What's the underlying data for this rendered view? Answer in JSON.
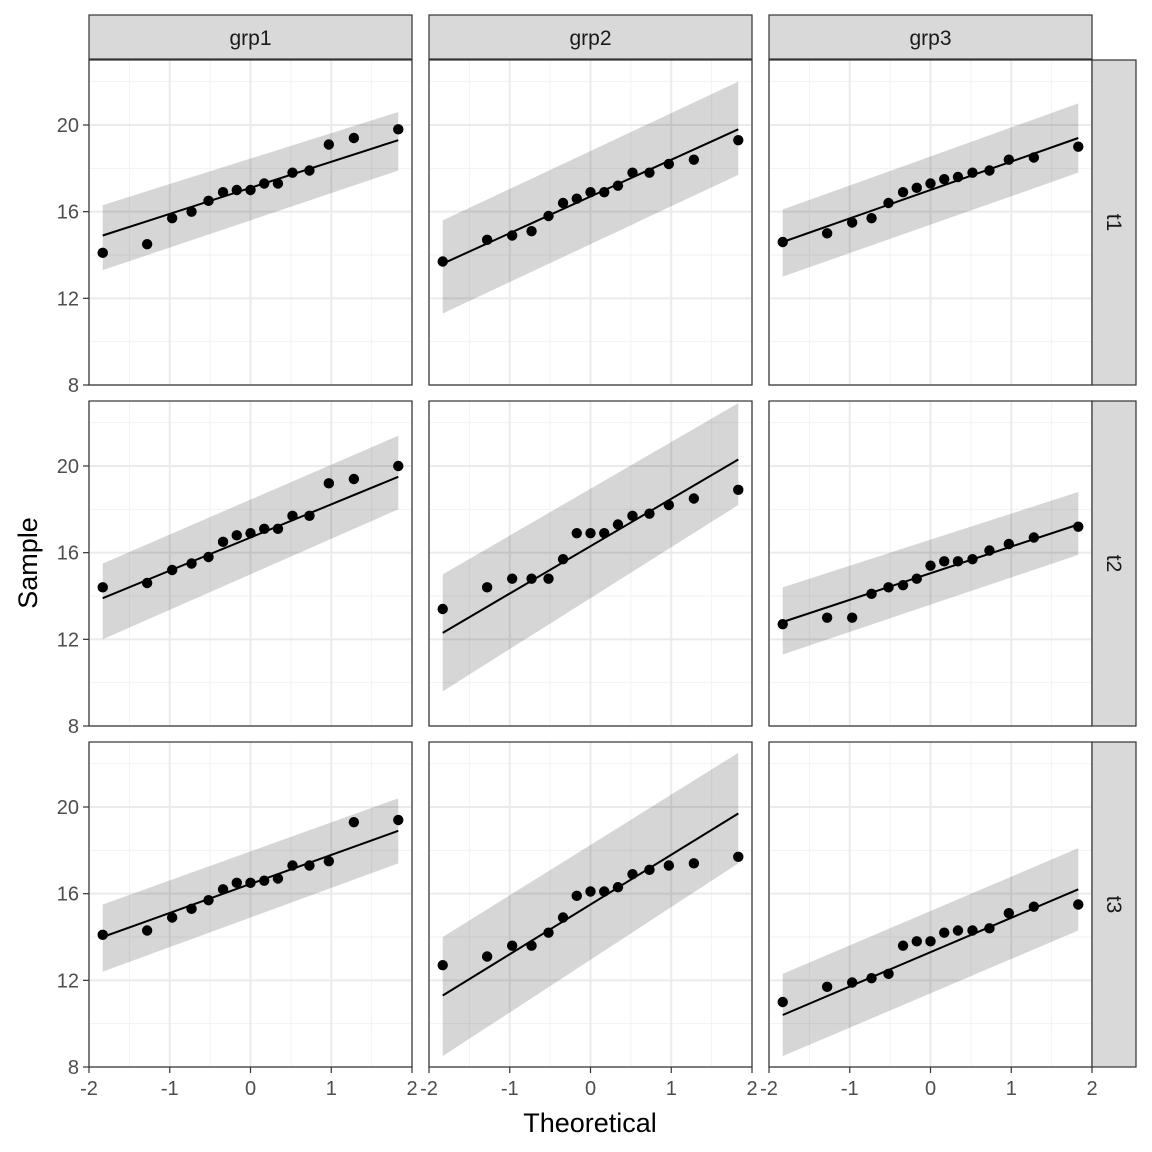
{
  "chart_data": {
    "type": "scatter",
    "title": "",
    "xlabel": "Theoretical",
    "ylabel": "Sample",
    "xlim": [
      -2,
      2
    ],
    "ylim": [
      8,
      23
    ],
    "x_ticks": [
      "-2",
      "-1",
      "0",
      "1",
      "2"
    ],
    "y_ticks": [
      "8",
      "12",
      "16",
      "20"
    ],
    "grid": true,
    "col_facets": [
      "grp1",
      "grp2",
      "grp3"
    ],
    "row_facets": [
      "t1",
      "t2",
      "t3"
    ],
    "theoretical_quantiles": [
      -1.83,
      -1.28,
      -0.97,
      -0.73,
      -0.52,
      -0.34,
      -0.17,
      0.0,
      0.17,
      0.34,
      0.52,
      0.73,
      0.97,
      1.28,
      1.83
    ],
    "panels": [
      {
        "col": "grp1",
        "row": "t1",
        "sample": [
          14.1,
          14.5,
          15.7,
          16.0,
          16.5,
          16.9,
          17.0,
          17.0,
          17.3,
          17.3,
          17.8,
          17.9,
          19.1,
          19.4,
          19.8
        ],
        "line": [
          14.9,
          19.3
        ],
        "band_low": [
          13.3,
          17.9
        ],
        "band_high": [
          16.3,
          20.6
        ]
      },
      {
        "col": "grp2",
        "row": "t1",
        "sample": [
          13.7,
          14.7,
          14.9,
          15.1,
          15.8,
          16.4,
          16.6,
          16.9,
          16.9,
          17.2,
          17.8,
          17.8,
          18.2,
          18.4,
          19.3
        ],
        "line": [
          13.6,
          19.8
        ],
        "band_low": [
          11.3,
          17.7
        ],
        "band_high": [
          15.6,
          22.0
        ]
      },
      {
        "col": "grp3",
        "row": "t1",
        "sample": [
          14.6,
          15.0,
          15.5,
          15.7,
          16.4,
          16.9,
          17.1,
          17.3,
          17.5,
          17.6,
          17.8,
          17.9,
          18.4,
          18.5,
          19.0
        ],
        "line": [
          14.6,
          19.4
        ],
        "band_low": [
          13.0,
          17.8
        ],
        "band_high": [
          16.1,
          21.0
        ]
      },
      {
        "col": "grp1",
        "row": "t2",
        "sample": [
          14.4,
          14.6,
          15.2,
          15.5,
          15.8,
          16.5,
          16.8,
          16.9,
          17.1,
          17.1,
          17.7,
          17.7,
          19.2,
          19.4,
          20.0
        ],
        "line": [
          13.9,
          19.5
        ],
        "band_low": [
          12.0,
          18.0
        ],
        "band_high": [
          15.5,
          21.4
        ]
      },
      {
        "col": "grp2",
        "row": "t2",
        "sample": [
          13.4,
          14.4,
          14.8,
          14.8,
          14.8,
          15.7,
          16.9,
          16.9,
          16.9,
          17.3,
          17.7,
          17.8,
          18.2,
          18.5,
          18.9
        ],
        "line": [
          12.3,
          20.3
        ],
        "band_low": [
          9.6,
          18.2
        ],
        "band_high": [
          15.0,
          22.9
        ]
      },
      {
        "col": "grp3",
        "row": "t2",
        "sample": [
          12.7,
          13.0,
          13.0,
          14.1,
          14.4,
          14.5,
          14.8,
          15.4,
          15.6,
          15.6,
          15.7,
          16.1,
          16.4,
          16.7,
          17.2
        ],
        "line": [
          12.8,
          17.3
        ],
        "band_low": [
          11.3,
          15.9
        ],
        "band_high": [
          14.4,
          18.8
        ]
      },
      {
        "col": "grp1",
        "row": "t3",
        "sample": [
          14.1,
          14.3,
          14.9,
          15.3,
          15.7,
          16.2,
          16.5,
          16.5,
          16.6,
          16.7,
          17.3,
          17.3,
          17.5,
          19.3,
          19.4
        ],
        "line": [
          14.0,
          18.9
        ],
        "band_low": [
          12.4,
          17.4
        ],
        "band_high": [
          15.5,
          20.4
        ]
      },
      {
        "col": "grp2",
        "row": "t3",
        "sample": [
          12.7,
          13.1,
          13.6,
          13.6,
          14.2,
          14.9,
          15.9,
          16.1,
          16.1,
          16.3,
          16.9,
          17.1,
          17.3,
          17.4,
          17.7
        ],
        "line": [
          11.3,
          19.7
        ],
        "band_low": [
          8.5,
          17.4
        ],
        "band_high": [
          14.0,
          22.5
        ]
      },
      {
        "col": "grp3",
        "row": "t3",
        "sample": [
          11.0,
          11.7,
          11.9,
          12.1,
          12.3,
          13.6,
          13.8,
          13.8,
          14.2,
          14.3,
          14.3,
          14.4,
          15.1,
          15.4,
          15.5
        ],
        "line": [
          10.4,
          16.2
        ],
        "band_low": [
          8.5,
          14.3
        ],
        "band_high": [
          12.3,
          18.1
        ]
      }
    ]
  }
}
